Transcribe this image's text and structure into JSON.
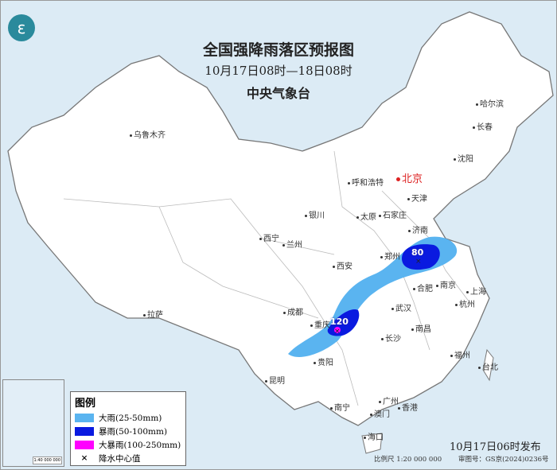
{
  "title": "全国强降雨落区预报图",
  "period": "10月17日08时—18日08时",
  "issuer": "中央气象台",
  "logo_icon": "cma-logo-icon",
  "cities": [
    "乌鲁木齐",
    "哈尔滨",
    "长春",
    "沈阳",
    "北京",
    "天津",
    "呼和浩特",
    "银川",
    "太原",
    "石家庄",
    "济南",
    "西宁",
    "兰州",
    "西安",
    "郑州",
    "合肥",
    "南京",
    "上海",
    "杭州",
    "成都",
    "重庆",
    "武汉",
    "南昌",
    "长沙",
    "福州",
    "台北",
    "拉萨",
    "贵阳",
    "昆明",
    "南宁",
    "广州",
    "澳门",
    "香港",
    "海口"
  ],
  "rain_centers": [
    {
      "value": "80",
      "near": "郑州"
    },
    {
      "value": "120",
      "near": "重庆"
    }
  ],
  "legend": {
    "title": "图例",
    "items": [
      {
        "label": "大雨(25-50mm)",
        "color": "#5ab4f0"
      },
      {
        "label": "暴雨(50-100mm)",
        "color": "#0a1ae0"
      },
      {
        "label": "大暴雨(100-250mm)",
        "color": "#ff00ff"
      },
      {
        "label": "降水中心值",
        "symbol": "×"
      }
    ]
  },
  "inset_scale": "1:40 000 000",
  "issued": "10月17日06时发布",
  "scale": "比例尺 1:20 000 000",
  "approval": "审图号：GS京(2024)0236号",
  "colors": {
    "land": "#ffffff",
    "sea": "#dcebf5",
    "heavy": "#5ab4f0",
    "rainstorm": "#0a1ae0",
    "severe": "#ff00ff"
  }
}
